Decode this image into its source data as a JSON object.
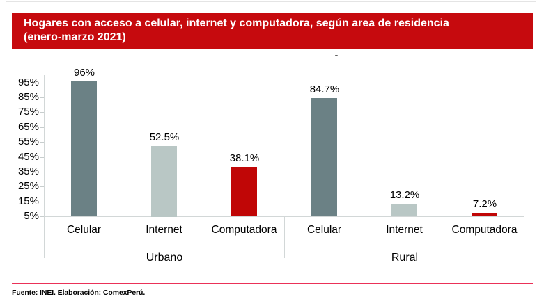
{
  "header": {
    "title_line1": "Hogares con acceso a celular, internet y computadora, según area de residencia",
    "title_line2": "(enero-marzo 2021)",
    "banner_color": "#c60a0e",
    "stray_text": "-"
  },
  "chart_data": {
    "type": "bar",
    "title": "Hogares con acceso a celular, internet y computadora, según area de residencia (enero-marzo 2021)",
    "categories": [
      "Celular",
      "Internet",
      "Computadora"
    ],
    "groups": [
      {
        "label": "Urbano",
        "values": [
          96,
          52.5,
          38.1
        ],
        "data_labels": [
          "96%",
          "52.5%",
          "38.1%"
        ]
      },
      {
        "label": "Rural",
        "values": [
          84.7,
          13.2,
          7.2
        ],
        "data_labels": [
          "84.7%",
          "13.2%",
          "7.2%"
        ]
      }
    ],
    "category_colors": [
      "#6b8185",
      "#b9c7c5",
      "#c00606"
    ],
    "ylabel": "",
    "xlabel": "",
    "ylim": [
      5,
      100
    ],
    "ytick_values": [
      5,
      15,
      25,
      35,
      45,
      55,
      65,
      75,
      85,
      95
    ],
    "ytick_suffix": "%",
    "gridlines": false,
    "legend": false,
    "data_labels_shown": true,
    "axis_color": "#d2d7d7"
  },
  "footer": {
    "source": "Fuente: INEI. Elaboración: ComexPerú.",
    "divider_color": "#ea3158"
  }
}
